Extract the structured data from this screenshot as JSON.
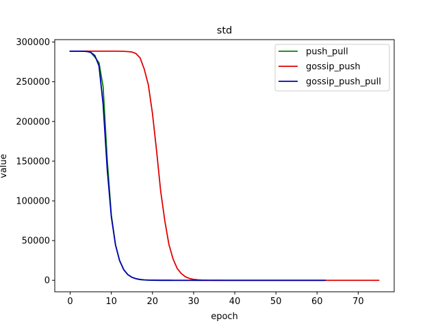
{
  "chart_data": {
    "type": "line",
    "title": "std",
    "xlabel": "epoch",
    "ylabel": "value",
    "xlim": [
      -3.75,
      78.75
    ],
    "ylim": [
      -14430,
      303030
    ],
    "xticks": [
      0,
      10,
      20,
      30,
      40,
      50,
      60,
      70
    ],
    "yticks": [
      0,
      50000,
      100000,
      150000,
      200000,
      250000,
      300000
    ],
    "xtick_labels": [
      "0",
      "10",
      "20",
      "30",
      "40",
      "50",
      "60",
      "70"
    ],
    "ytick_labels": [
      "0",
      "50000",
      "100000",
      "150000",
      "200000",
      "250000",
      "300000"
    ],
    "grid": false,
    "legend_position": "top-right",
    "series": [
      {
        "name": "push_pull",
        "color": "#008000",
        "x": [
          0,
          1,
          2,
          3,
          4,
          5,
          6,
          7,
          8,
          9,
          10,
          11,
          12,
          13,
          14,
          15,
          16,
          17,
          18,
          19,
          20,
          22,
          24,
          26,
          28,
          30,
          35,
          40,
          45,
          50,
          55,
          62
        ],
        "y": [
          288500,
          288500,
          288500,
          288400,
          288200,
          287000,
          281000,
          274000,
          244000,
          152000,
          82000,
          45000,
          25000,
          13500,
          7200,
          3800,
          2000,
          1000,
          520,
          270,
          140,
          40,
          12,
          4,
          1,
          0,
          0,
          0,
          0,
          0,
          0,
          0
        ]
      },
      {
        "name": "gossip_push",
        "color": "#e00000",
        "x": [
          0,
          1,
          2,
          3,
          4,
          5,
          6,
          7,
          8,
          9,
          10,
          11,
          12,
          13,
          14,
          15,
          16,
          17,
          18,
          19,
          20,
          21,
          22,
          23,
          24,
          25,
          26,
          27,
          28,
          29,
          30,
          31,
          32,
          33,
          34,
          35,
          36,
          38,
          40,
          45,
          50,
          55,
          60,
          65,
          70,
          75
        ],
        "y": [
          288500,
          288500,
          288500,
          288500,
          288500,
          288500,
          288500,
          288500,
          288500,
          288500,
          288500,
          288500,
          288400,
          288300,
          288000,
          287500,
          285500,
          280000,
          266000,
          246000,
          210000,
          163000,
          112000,
          75000,
          45000,
          27000,
          15000,
          8500,
          4500,
          2300,
          1200,
          600,
          300,
          150,
          70,
          35,
          15,
          5,
          1,
          0,
          0,
          0,
          0,
          0,
          0,
          0
        ]
      },
      {
        "name": "gossip_push_pull",
        "color": "#0000b0",
        "x": [
          0,
          1,
          2,
          3,
          4,
          5,
          6,
          7,
          8,
          9,
          10,
          11,
          12,
          13,
          14,
          15,
          16,
          17,
          18,
          19,
          20,
          22,
          24,
          26,
          28,
          30,
          35,
          40,
          45,
          50,
          55,
          62
        ],
        "y": [
          288500,
          288500,
          288500,
          288400,
          288200,
          287000,
          283000,
          270000,
          222000,
          140000,
          80000,
          45000,
          25000,
          13500,
          7200,
          3800,
          2000,
          1000,
          520,
          270,
          140,
          40,
          12,
          4,
          1,
          0,
          0,
          0,
          0,
          0,
          0,
          0
        ]
      }
    ]
  }
}
